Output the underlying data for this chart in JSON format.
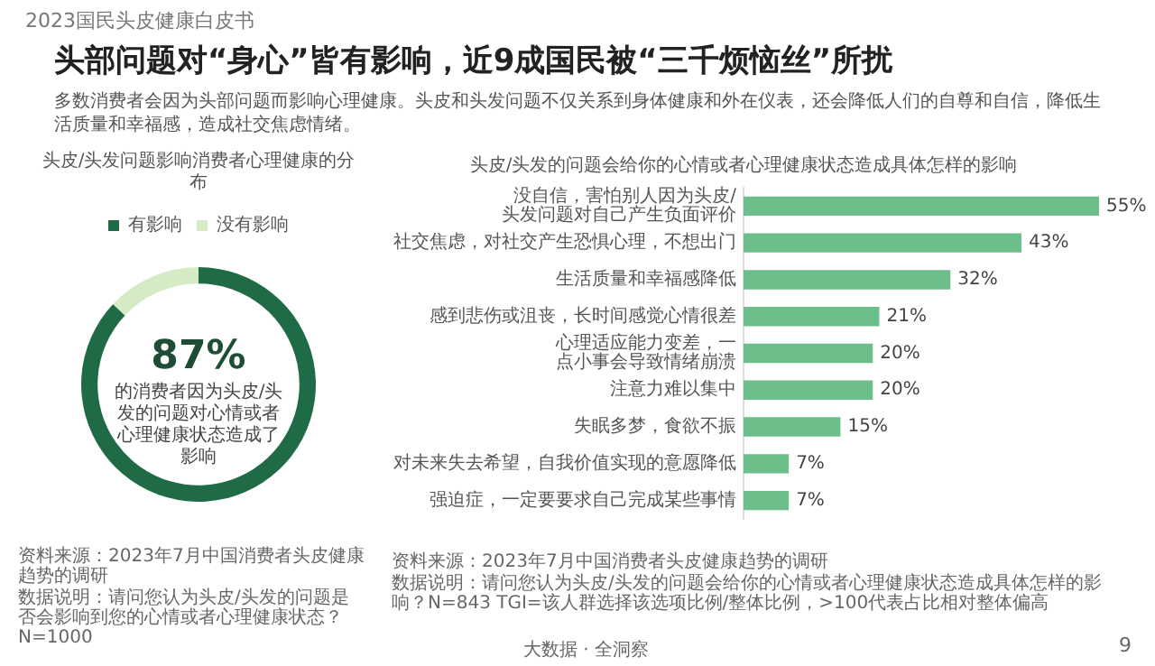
{
  "chart_data": [
    {
      "type": "donut",
      "title": "头皮/头发问题影响消费者心理健康的分布",
      "categories": [
        "有影响",
        "没有影响"
      ],
      "values": [
        87,
        13
      ],
      "colors": [
        "#1e6b45",
        "#d5ebc5"
      ],
      "legend": "top",
      "annotations": [
        "2023国民头皮健康白皮书",
        "头部问题对“身心”皆有影响，近9成国民被“三千烦恼丝”所扰",
        "多数消费者会因为头部问题而影响心理健康。头皮和头发问题不仅关系到身体健康和外在仪表，还会降低人们的自尊和自信，降低生活质量和幸福感，造成社交焦虑情绪。",
        "87%",
        "的消费者因为头皮/头发的问题对心情或者心理健康状态造成了影响",
        "资料来源：2023年7月中国消费者头皮健康趋势的调研",
        "数据说明：请问您认为头皮/头发的问题是否会影响到您的心情或者心理健康状态？N=1000",
        "大数据 · 全洞察",
        "9"
      ]
    },
    {
      "type": "bar",
      "orientation": "horizontal",
      "title": "头皮/头发的问题会给你的心情或者心理健康状态造成具体怎样的影响",
      "categories": [
        "没自信，害怕别人因为头皮/头发问题对自己产生负面评价",
        "社交焦虑，对社交产生恐惧心理，不想出门",
        "生活质量和幸福感降低",
        "感到悲伤或沮丧，长时间感觉心情很差",
        "心理适应能力变差，一点小事会导致情绪崩溃",
        "注意力难以集中",
        "失眠多梦，食欲不振",
        "对未来失去希望，自我价值实现的意愿降低",
        "强迫症，一定要要求自己完成某些事情"
      ],
      "values": [
        55,
        43,
        32,
        21,
        20,
        20,
        15,
        7,
        7
      ],
      "value_labels": [
        "55%",
        "43%",
        "32%",
        "21%",
        "20%",
        "20%",
        "15%",
        "7%",
        "7%"
      ],
      "color": "#6cbf8a",
      "annotations": [
        "资料来源：2023年7月中国消费者头皮健康趋势的调研",
        "数据说明：请问您认为头皮/头发的问题会给你的心情或者心理健康状态造成具体怎样的影响？N=843 TGI=该人群选择该选项比例/整体比例，>100代表占比相对整体偏高"
      ]
    }
  ]
}
